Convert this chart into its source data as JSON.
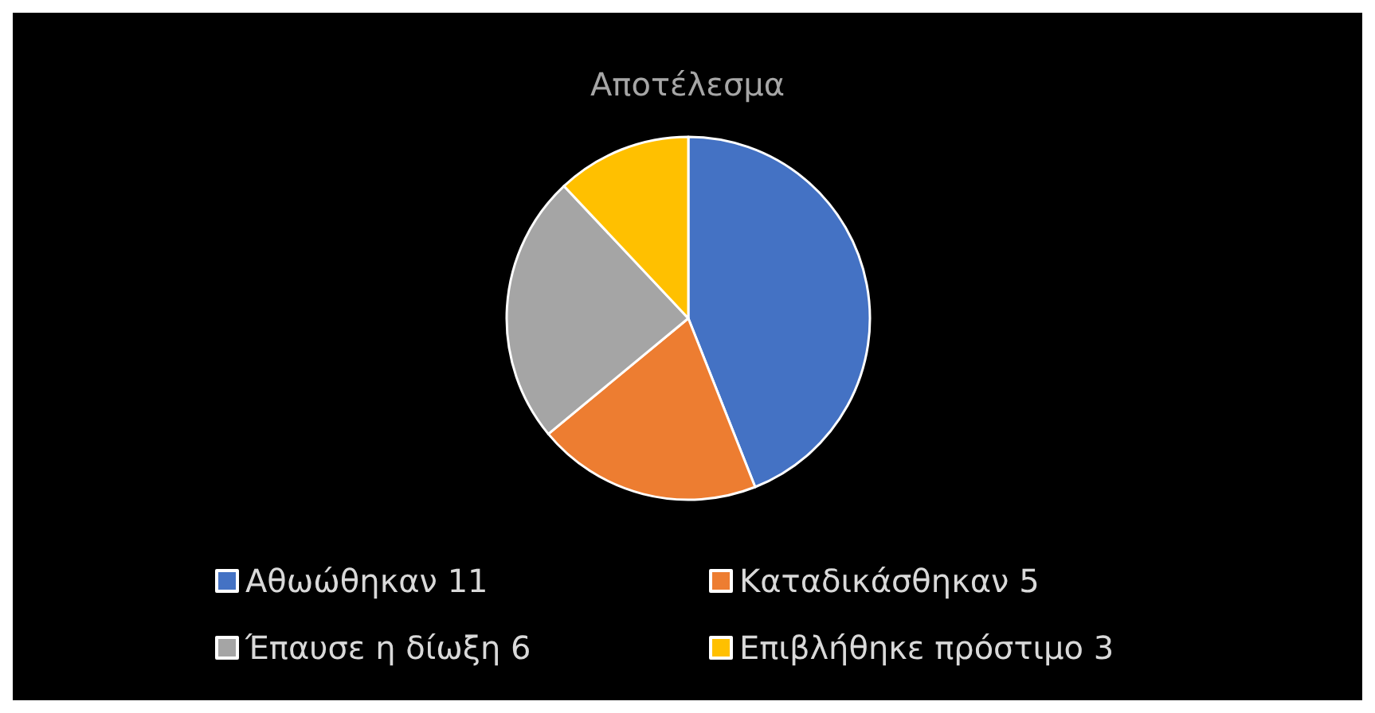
{
  "chart_data": {
    "type": "pie",
    "title": "Αποτέλεσμα",
    "categories": [
      "Αθωώθηκαν 11",
      "Καταδικάσθηκαν 5",
      "Έπαυσε η δίωξη 6",
      "Επιβλήθηκε πρόστιμο 3"
    ],
    "values": [
      11,
      5,
      6,
      3
    ],
    "colors": [
      "#4472c4",
      "#ed7d31",
      "#a5a5a5",
      "#ffc000"
    ],
    "legend": "bottom"
  }
}
